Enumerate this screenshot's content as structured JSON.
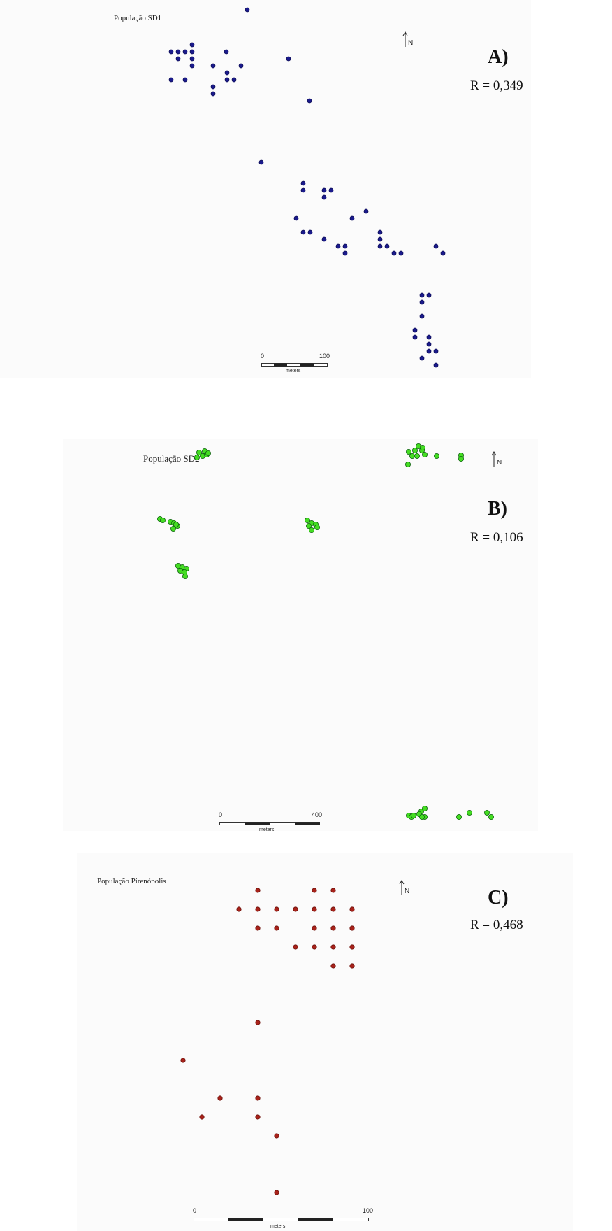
{
  "panels": [
    {
      "id": "A",
      "title": "População SD1",
      "letter": "A)",
      "r_label": "R = 0,349",
      "north_label": "N",
      "point_color": "#1a1a8c",
      "point_stroke": "#0b0b55",
      "scale": {
        "min_label": "0",
        "max_label": "100",
        "unit": "meters"
      }
    },
    {
      "id": "B",
      "title": "População SD2",
      "letter": "B)",
      "r_label": "R = 0,106",
      "north_label": "N",
      "point_color": "#44dd22",
      "point_stroke": "#126612",
      "scale": {
        "min_label": "0",
        "max_label": "400",
        "unit": "meters"
      }
    },
    {
      "id": "C",
      "title": "População Pirenópolis",
      "letter": "C)",
      "r_label": "R = 0,468",
      "north_label": "N",
      "point_color": "#a8221a",
      "point_stroke": "#6e120c",
      "scale": {
        "min_label": "0",
        "max_label": "100",
        "unit": "meters"
      }
    }
  ]
}
